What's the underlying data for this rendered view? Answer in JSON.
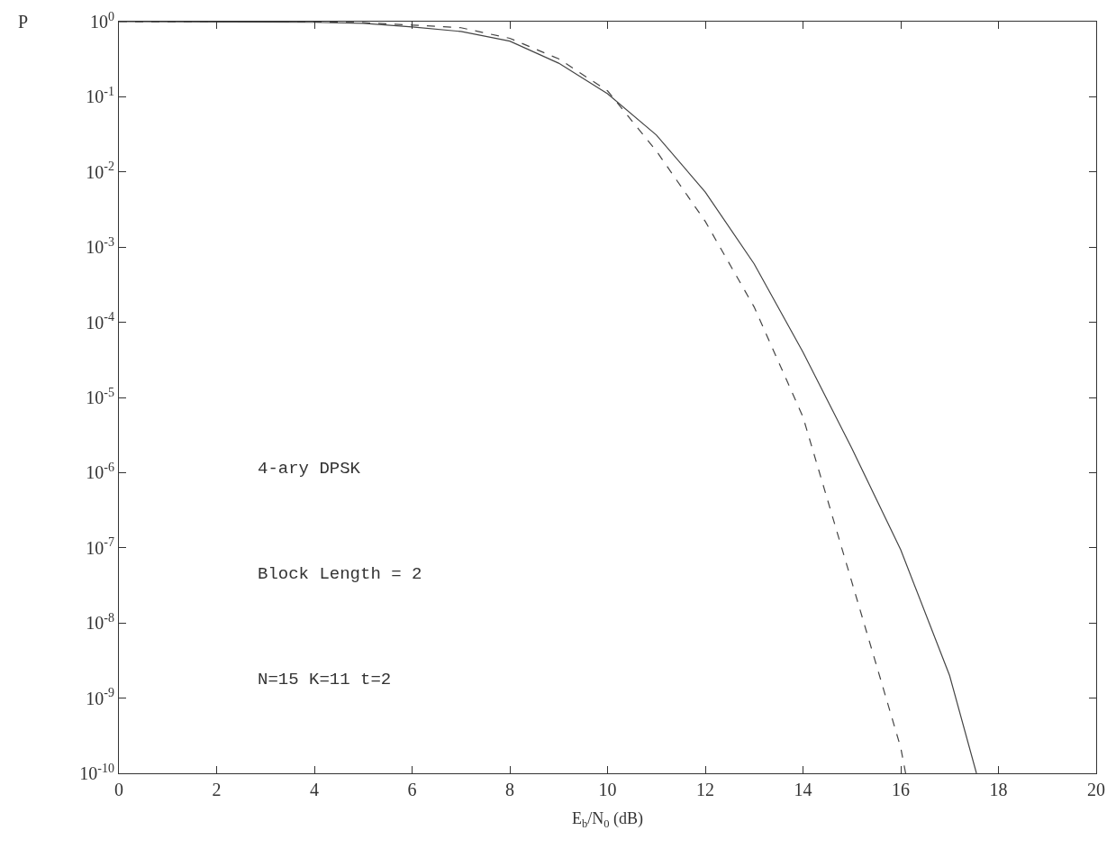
{
  "chart_data": {
    "type": "line",
    "xlabel": "E$_{b}$/N$_{0}$ (dB)",
    "ylabel": "P",
    "log": "y",
    "xlim": [
      0,
      20
    ],
    "xticks": [
      0,
      2,
      4,
      6,
      8,
      10,
      12,
      14,
      16,
      18,
      20
    ],
    "ylim": [
      1e-10,
      1
    ],
    "yticks": [
      {
        "value": 1,
        "label": "10$^{0}$"
      },
      {
        "value": 0.1,
        "label": "10$^{-1}$"
      },
      {
        "value": 0.01,
        "label": "10$^{-2}$"
      },
      {
        "value": 0.001,
        "label": "10$^{-3}$"
      },
      {
        "value": 0.0001,
        "label": "10$^{-4}$"
      },
      {
        "value": 1e-05,
        "label": "10$^{-5}$"
      },
      {
        "value": 1e-06,
        "label": "10$^{-6}$"
      },
      {
        "value": 1e-07,
        "label": "10$^{-7}$"
      },
      {
        "value": 1e-08,
        "label": "10$^{-8}$"
      },
      {
        "value": 1e-09,
        "label": "10$^{-9}$"
      },
      {
        "value": 1e-10,
        "label": "10$^{-10}$"
      }
    ],
    "series": [
      {
        "color": "#444444",
        "line_style": "solid",
        "x": [
          0,
          4,
          5,
          6,
          7,
          8,
          9,
          10,
          11,
          12,
          13,
          14,
          15,
          16,
          17,
          17.55
        ],
        "values": [
          1,
          0.98,
          0.95,
          0.85,
          0.74,
          0.55,
          0.28,
          0.11,
          0.031,
          0.0054,
          0.0006,
          4e-05,
          2.1e-06,
          9.4e-08,
          2e-09,
          1e-10
        ]
      },
      {
        "color": "#444444",
        "line_style": "dashed",
        "x": [
          0,
          4,
          5,
          6,
          7,
          8,
          9,
          10,
          11,
          12,
          13,
          14,
          15,
          16,
          16.1
        ],
        "values": [
          1,
          0.99,
          0.97,
          0.9,
          0.83,
          0.6,
          0.32,
          0.12,
          0.019,
          0.0022,
          0.00016,
          5.5e-06,
          3.5e-08,
          2.2e-10,
          1e-10
        ]
      }
    ],
    "annotations": [
      "4-ary DPSK",
      "Block Length = 2",
      "N=15 K=11 t=2"
    ]
  }
}
